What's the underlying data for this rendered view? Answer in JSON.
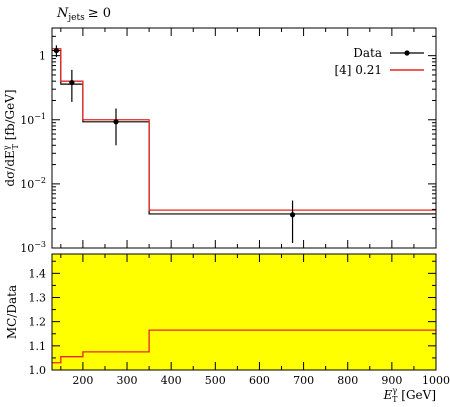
{
  "chart_data": [
    {
      "type": "line",
      "title": "",
      "annotation": {
        "N": "N",
        "sub": "jets",
        "rel": "≥ 0"
      },
      "ylabel": {
        "main": "dσ/dE",
        "sup": "γ",
        "sub": "T",
        "unit": " [fb/GeV]"
      },
      "yscale": "log",
      "ylim": [
        0.001,
        2.7
      ],
      "xlim": [
        130,
        1000
      ],
      "y_ticks": [
        {
          "value": 1,
          "label": "1"
        },
        {
          "value": 0.1,
          "label": "10",
          "exp": "−1"
        },
        {
          "value": 0.01,
          "label": "10",
          "exp": "−2"
        },
        {
          "value": 0.001,
          "label": "10",
          "exp": "−3"
        }
      ],
      "legend": {
        "position": "top-right",
        "entries": [
          {
            "label": "Data",
            "style": "points",
            "color": "#000000"
          },
          {
            "label": "[4] 0.21",
            "style": "line",
            "color": "#e8251f"
          }
        ]
      },
      "bins": [
        130,
        150,
        200,
        350,
        1000
      ],
      "series": [
        {
          "name": "Data",
          "style": "points",
          "color": "#000000",
          "x": [
            140,
            175,
            275,
            675
          ],
          "y": [
            1.2,
            0.38,
            0.093,
            0.0033
          ],
          "y_low": [
            0.95,
            0.19,
            0.04,
            0.0012
          ],
          "y_high": [
            1.45,
            0.6,
            0.15,
            0.0055
          ],
          "step_values": [
            1.2,
            0.36,
            0.093,
            0.0034
          ]
        },
        {
          "name": "[4] 0.21",
          "style": "step",
          "color": "#e8251f",
          "step_values": [
            1.28,
            0.4,
            0.1,
            0.0039
          ]
        }
      ]
    },
    {
      "type": "line",
      "ylabel": "MC/Data",
      "xlabel": {
        "main": "E",
        "sup": "γ",
        "sub": "T",
        "unit": " [GeV]"
      },
      "xlim": [
        130,
        1000
      ],
      "ylim": [
        1.0,
        1.48
      ],
      "band_color": "#ffff00",
      "x_ticks": [
        200,
        300,
        400,
        500,
        600,
        700,
        800,
        900,
        1000
      ],
      "y_ticks": [
        1.0,
        1.1,
        1.2,
        1.3,
        1.4
      ],
      "bins": [
        130,
        150,
        200,
        350,
        1000
      ],
      "ratio": [
        1.03,
        1.055,
        1.075,
        1.165
      ],
      "band": [
        1.0,
        1.48
      ]
    }
  ]
}
